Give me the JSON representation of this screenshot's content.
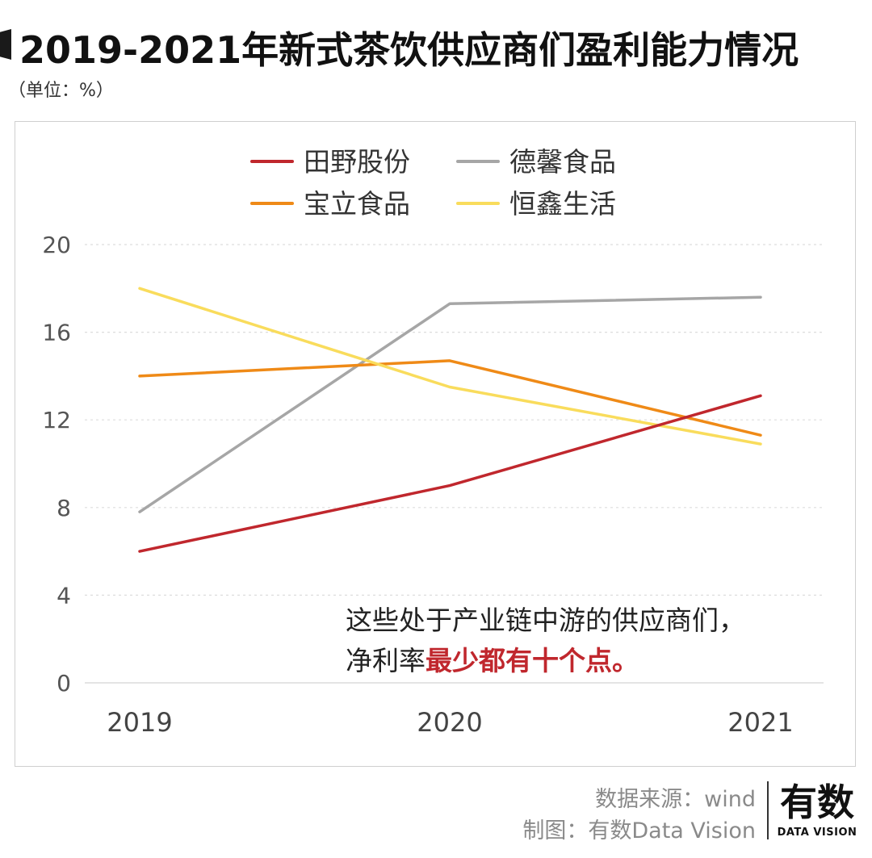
{
  "header": {
    "title": "2019-2021年新式茶饮供应商们盈利能力情况",
    "unit": "（单位：%）"
  },
  "chart_data": {
    "type": "line",
    "categories": [
      "2019",
      "2020",
      "2021"
    ],
    "ylim": [
      0,
      20
    ],
    "yticks": [
      "0",
      "4",
      "8",
      "12",
      "16",
      "20"
    ],
    "ytick_values": [
      0,
      4,
      8,
      12,
      16,
      20
    ],
    "grid": true,
    "legend_position": "top",
    "series": [
      {
        "name": "田野股份",
        "color": "#c0272d",
        "values": [
          6.0,
          9.0,
          13.1
        ]
      },
      {
        "name": "德馨食品",
        "color": "#a6a6a6",
        "values": [
          7.8,
          17.3,
          17.6
        ]
      },
      {
        "name": "宝立食品",
        "color": "#ef8a17",
        "values": [
          14.0,
          14.7,
          11.3
        ]
      },
      {
        "name": "恒鑫生活",
        "color": "#f9dc5c",
        "values": [
          18.0,
          13.5,
          10.9
        ]
      }
    ],
    "annotation": {
      "line1": "这些处于产业链中游的供应商们，",
      "line2_prefix": "净利率",
      "line2_highlight": "最少都有十个点。",
      "highlight_color": "#c0272d"
    }
  },
  "footer": {
    "source": "数据来源：wind",
    "credit": "制图：有数Data Vision",
    "logo_text": "有数",
    "logo_sub": "DATA VISION"
  }
}
